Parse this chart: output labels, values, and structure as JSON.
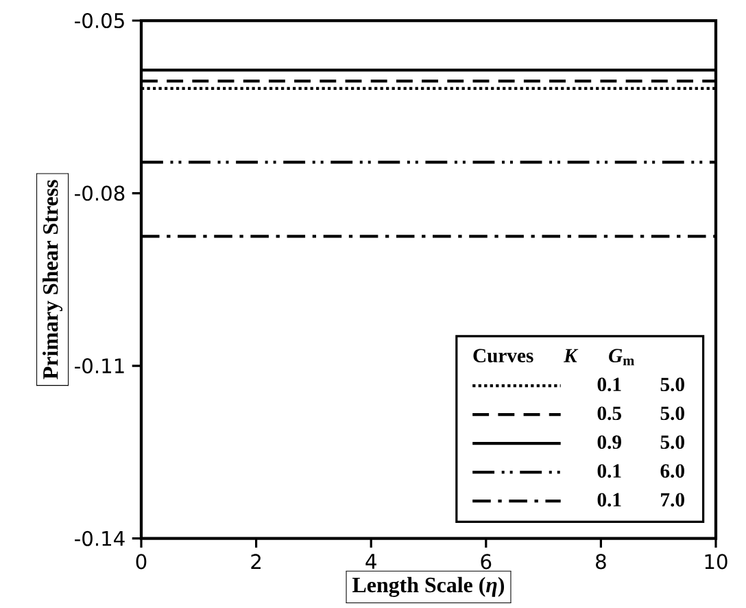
{
  "chart_data": {
    "type": "line",
    "xlabel": "Length Scale (*η*)",
    "ylabel": "Primary Shear Stress",
    "xlim": [
      0,
      10
    ],
    "ylim": [
      -0.14,
      -0.05
    ],
    "xticks": [
      0,
      2,
      4,
      6,
      8,
      10
    ],
    "yticks": [
      -0.14,
      -0.11,
      -0.08,
      -0.05
    ],
    "legend": "bottom right",
    "legend_title": "Curves *K* *G*$_{m}$",
    "x": [
      0,
      10
    ],
    "series": [
      {
        "name": "0.1 5.0",
        "color": "#000000",
        "line_style": "dotted",
        "values": [
          -0.0618,
          -0.0618
        ]
      },
      {
        "name": "0.5 5.0",
        "color": "#000000",
        "line_style": "dashed",
        "values": [
          -0.0605,
          -0.0605
        ]
      },
      {
        "name": "0.9 5.0",
        "color": "#000000",
        "line_style": "solid",
        "values": [
          -0.0586,
          -0.0586
        ]
      },
      {
        "name": "0.1 6.0",
        "color": "#000000",
        "line_style": "dash-dot-dot",
        "values": [
          -0.0746,
          -0.0746
        ]
      },
      {
        "name": "0.1 7.0",
        "color": "#000000",
        "line_style": "dash-dot",
        "values": [
          -0.0875,
          -0.0875
        ]
      }
    ]
  }
}
